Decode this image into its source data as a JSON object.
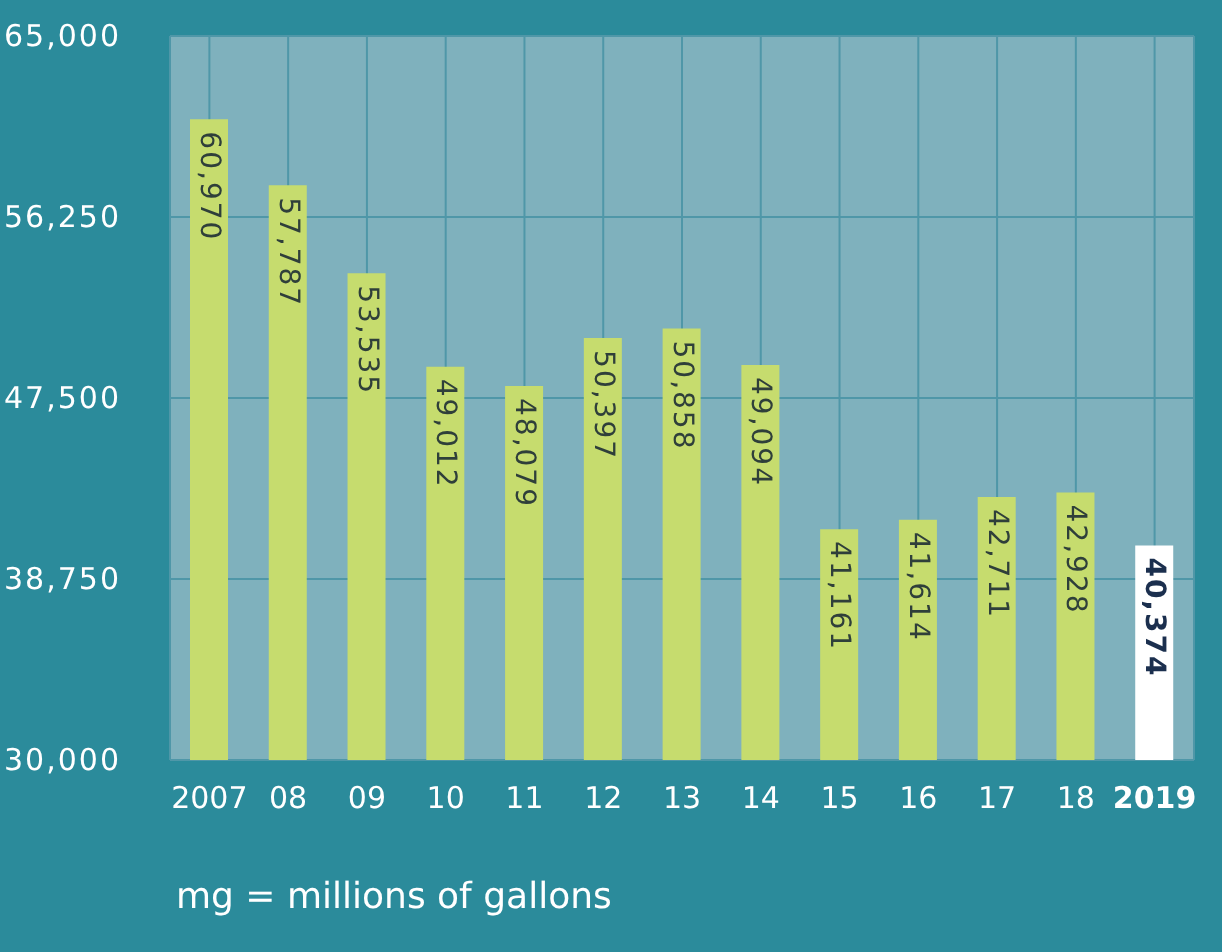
{
  "chart_data": {
    "type": "bar",
    "categories": [
      "2007",
      "08",
      "09",
      "10",
      "11",
      "12",
      "13",
      "14",
      "15",
      "16",
      "17",
      "18",
      "2019"
    ],
    "values": [
      60970,
      57787,
      53535,
      49012,
      48079,
      50397,
      50858,
      49094,
      41161,
      41614,
      42711,
      42928,
      40374
    ],
    "colors": [
      "#c6dc6e",
      "#c6dc6e",
      "#c6dc6e",
      "#c6dc6e",
      "#c6dc6e",
      "#c6dc6e",
      "#c6dc6e",
      "#c6dc6e",
      "#c6dc6e",
      "#c6dc6e",
      "#c6dc6e",
      "#c6dc6e",
      "#ffffff"
    ],
    "ylim": [
      30000,
      65000
    ],
    "yticks": [
      {
        "value": 30000,
        "label": "30,000"
      },
      {
        "value": 38750,
        "label": "38,750"
      },
      {
        "value": 47500,
        "label": "47,500"
      },
      {
        "value": 56250,
        "label": "56,250"
      },
      {
        "value": 65000,
        "label": "65,000"
      }
    ],
    "grid": true,
    "value_labels": [
      "60,970",
      "57,787",
      "53,535",
      "49,012",
      "48,079",
      "50,397",
      "50,858",
      "49,094",
      "41,161",
      "41,614",
      "42,711",
      "42,928",
      "40,374"
    ],
    "annotations": [
      "mg = millions of gallons"
    ]
  }
}
